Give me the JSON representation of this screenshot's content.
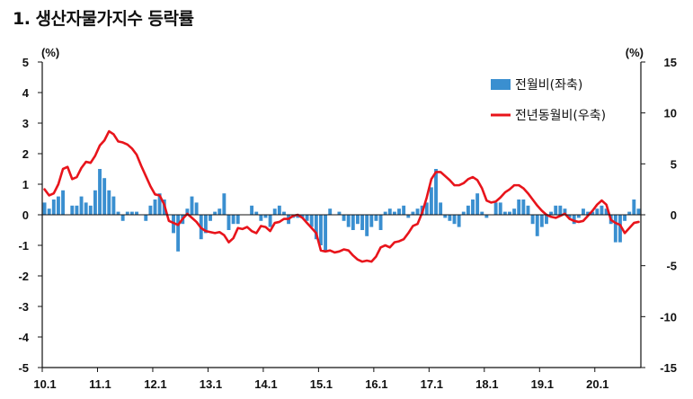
{
  "chart_data": {
    "type": "bar+line",
    "title": "1. 생산자물가지수 등락률",
    "left_axis": {
      "unit": "(%)",
      "ylim": [
        -5,
        5
      ],
      "ticks": [
        5,
        4,
        3,
        2,
        1,
        0,
        -1,
        -2,
        -3,
        -4,
        -5
      ]
    },
    "right_axis": {
      "unit": "(%)",
      "ylim": [
        -15,
        15
      ],
      "ticks": [
        15,
        10,
        5,
        0,
        -5,
        -10,
        -15
      ]
    },
    "x_ticks": [
      "10.1",
      "11.1",
      "12.1",
      "13.1",
      "14.1",
      "15.1",
      "16.1",
      "17.1",
      "18.1",
      "19.1",
      "20.1"
    ],
    "x_start": "2010-01",
    "grid": false,
    "legend_position": "top-right",
    "colors": {
      "bar": "#3a8fd0",
      "line": "#e8141b"
    },
    "series": [
      {
        "name": "전월비(좌축)",
        "type": "bar",
        "axis": "left",
        "values": [
          0.4,
          0.2,
          0.5,
          0.6,
          0.8,
          0.0,
          0.3,
          0.3,
          0.6,
          0.4,
          0.3,
          0.8,
          1.5,
          1.2,
          0.8,
          0.6,
          0.1,
          -0.2,
          0.1,
          0.1,
          0.1,
          0.0,
          -0.2,
          0.3,
          0.5,
          0.7,
          0.5,
          0.0,
          -0.6,
          -1.2,
          -0.3,
          0.2,
          0.6,
          0.4,
          -0.8,
          -0.6,
          -0.2,
          0.1,
          0.2,
          0.7,
          -0.5,
          -0.3,
          -0.3,
          0.0,
          0.0,
          0.3,
          0.1,
          -0.2,
          -0.1,
          -0.4,
          0.2,
          0.3,
          0.1,
          -0.3,
          -0.1,
          -0.1,
          -0.1,
          -0.2,
          -0.4,
          -0.8,
          -1.0,
          -1.2,
          0.2,
          0.0,
          0.1,
          -0.2,
          -0.4,
          -0.5,
          -0.3,
          -0.5,
          -0.7,
          -0.4,
          -0.2,
          -0.5,
          0.1,
          0.2,
          0.1,
          0.2,
          0.3,
          -0.1,
          0.1,
          0.2,
          0.3,
          0.4,
          0.9,
          1.5,
          0.4,
          -0.1,
          -0.2,
          -0.3,
          -0.4,
          0.1,
          0.3,
          0.5,
          0.7,
          0.1,
          -0.1,
          0.0,
          0.4,
          0.4,
          0.1,
          0.1,
          0.2,
          0.5,
          0.5,
          0.3,
          -0.3,
          -0.7,
          -0.4,
          -0.3,
          0.1,
          0.3,
          0.3,
          0.2,
          -0.1,
          -0.3,
          -0.1,
          0.2,
          0.1,
          0.1,
          0.2,
          0.3,
          0.2,
          -0.3,
          -0.9,
          -0.9,
          -0.2,
          0.1,
          0.5,
          0.2
        ]
      },
      {
        "name": "전년동월비(우축)",
        "type": "line",
        "axis": "right",
        "values": [
          2.5,
          1.9,
          2.1,
          3.0,
          4.5,
          4.7,
          3.5,
          3.7,
          4.6,
          5.2,
          5.1,
          5.8,
          6.8,
          7.3,
          8.2,
          7.9,
          7.2,
          7.1,
          6.9,
          6.5,
          5.9,
          4.8,
          3.8,
          2.8,
          2.0,
          1.9,
          1.0,
          -0.6,
          -0.8,
          -1.0,
          -0.4,
          0.1,
          -0.3,
          -0.7,
          -1.3,
          -1.6,
          -1.7,
          -1.8,
          -1.7,
          -2.0,
          -2.7,
          -2.3,
          -1.3,
          -1.4,
          -1.2,
          -1.6,
          -1.8,
          -1.1,
          -1.2,
          -1.6,
          -0.8,
          -0.7,
          -0.4,
          -0.4,
          -0.1,
          0.0,
          -0.3,
          -0.8,
          -1.3,
          -1.8,
          -3.5,
          -3.6,
          -3.5,
          -3.7,
          -3.6,
          -3.4,
          -3.5,
          -4.0,
          -4.4,
          -4.6,
          -4.5,
          -4.6,
          -4.1,
          -3.2,
          -3.0,
          -3.2,
          -2.7,
          -2.6,
          -2.4,
          -1.8,
          -1.1,
          -0.9,
          0.2,
          1.7,
          3.5,
          4.2,
          4.2,
          3.8,
          3.4,
          2.9,
          2.9,
          3.1,
          3.5,
          3.7,
          3.4,
          2.6,
          1.4,
          1.2,
          1.3,
          1.7,
          2.2,
          2.5,
          2.9,
          2.9,
          2.6,
          2.1,
          1.5,
          0.9,
          0.4,
          0.0,
          -0.2,
          -0.3,
          -0.1,
          0.1,
          -0.4,
          -0.6,
          -0.7,
          -0.6,
          -0.1,
          0.4,
          1.0,
          1.4,
          1.0,
          -0.5,
          -0.8,
          -1.0,
          -1.8,
          -1.3,
          -0.8,
          -0.7
        ]
      }
    ]
  }
}
